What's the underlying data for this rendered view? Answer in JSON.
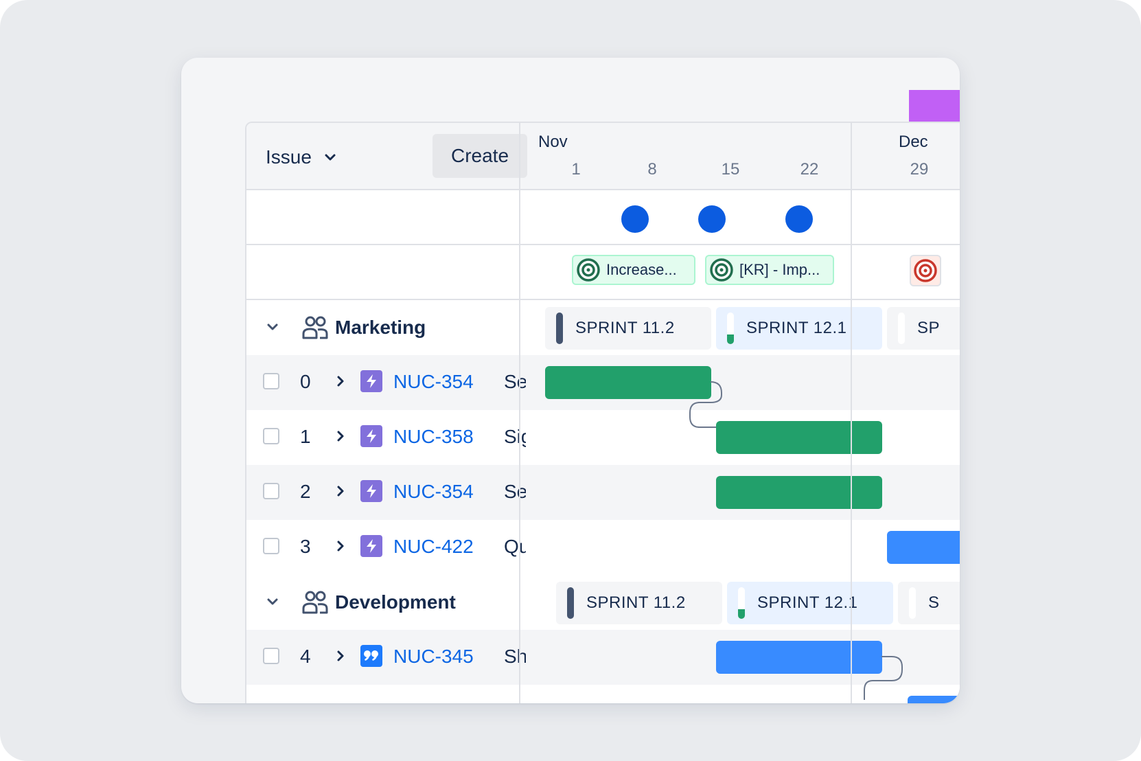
{
  "header": {
    "issue_select": "Issue",
    "create_label": "Create",
    "months": [
      {
        "label": "Nov"
      },
      {
        "label": "Dec"
      }
    ],
    "days": [
      "1",
      "8",
      "15",
      "22",
      "29"
    ]
  },
  "goals": [
    {
      "label": "Increase...",
      "color": "#216e4e"
    },
    {
      "label": "[KR] - Imp...",
      "color": "#216e4e"
    },
    {
      "label": "",
      "color": "#c9372c"
    }
  ],
  "teams": [
    {
      "name": "Marketing",
      "sprints": [
        {
          "label": "SPRINT 11.2",
          "state": "closed"
        },
        {
          "label": "SPRINT 12.1",
          "state": "active",
          "progress": 0.25
        },
        {
          "label": "SP",
          "state": "future"
        }
      ],
      "issues": [
        {
          "index": "0",
          "key": "NUC-354",
          "summary": "Se",
          "type": "epic",
          "bar_color": "#22a06b"
        },
        {
          "index": "1",
          "key": "NUC-358",
          "summary": "Sig",
          "type": "epic",
          "bar_color": "#22a06b"
        },
        {
          "index": "2",
          "key": "NUC-354",
          "summary": "Se",
          "type": "epic",
          "bar_color": "#22a06b"
        },
        {
          "index": "3",
          "key": "NUC-422",
          "summary": "Qu",
          "type": "epic",
          "bar_color": "#388bff"
        }
      ]
    },
    {
      "name": "Development",
      "sprints": [
        {
          "label": "SPRINT 11.2",
          "state": "closed"
        },
        {
          "label": "SPRINT 12.1",
          "state": "active",
          "progress": 0.25
        },
        {
          "label": "S",
          "state": "future"
        }
      ],
      "issues": [
        {
          "index": "4",
          "key": "NUC-345",
          "summary": "Sh",
          "type": "story",
          "bar_color": "#388bff"
        }
      ]
    }
  ],
  "colors": {
    "accent_purple": "#c160f5",
    "milestone_blue": "#0c5ce0",
    "epic_purple": "#8270db",
    "story_blue": "#1d7afc",
    "sparkle": "#f5b015",
    "link_blue": "#0c66e4"
  },
  "icons": {
    "team": "people-icon",
    "epic": "lightning-icon",
    "story": "quote-icon",
    "goal": "target-icon"
  }
}
